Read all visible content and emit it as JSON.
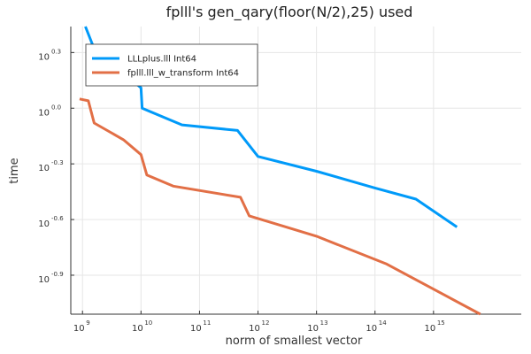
{
  "chart_data": {
    "type": "line",
    "title": "fplll's gen_qary(floor(N/2),25) used",
    "xlabel": "norm of smallest vector",
    "ylabel": "time",
    "x_scale": "log10",
    "y_scale": "log10",
    "xlim_exp": [
      8.8,
      16.5
    ],
    "ylim_exp": [
      -1.11,
      0.44
    ],
    "x_ticks": [
      {
        "base": "10",
        "exp": "9",
        "value_exp": 9
      },
      {
        "base": "10",
        "exp": "10",
        "value_exp": 10
      },
      {
        "base": "10",
        "exp": "11",
        "value_exp": 11
      },
      {
        "base": "10",
        "exp": "12",
        "value_exp": 12
      },
      {
        "base": "10",
        "exp": "13",
        "value_exp": 13
      },
      {
        "base": "10",
        "exp": "14",
        "value_exp": 14
      },
      {
        "base": "10",
        "exp": "15",
        "value_exp": 15
      }
    ],
    "y_ticks": [
      {
        "base": "10",
        "exp": "0.3",
        "value_exp": 0.3
      },
      {
        "base": "10",
        "exp": "0.0",
        "value_exp": 0.0
      },
      {
        "base": "10",
        "exp": "-0.3",
        "value_exp": -0.3
      },
      {
        "base": "10",
        "exp": "-0.6",
        "value_exp": -0.6
      },
      {
        "base": "10",
        "exp": "-0.9",
        "value_exp": -0.9
      }
    ],
    "grid": true,
    "legend_position": "top-left",
    "series": [
      {
        "name": "LLLplus.lll Int64",
        "color": "#009af9",
        "x_exp": [
          9.05,
          9.2,
          9.4,
          10.0,
          10.02,
          10.7,
          11.65,
          12.0,
          13.0,
          14.0,
          14.7,
          15.4
        ],
        "y_exp": [
          0.44,
          0.32,
          0.27,
          0.11,
          0.0,
          -0.09,
          -0.12,
          -0.26,
          -0.34,
          -0.43,
          -0.49,
          -0.64
        ]
      },
      {
        "name": "fplll.lll_w_transform Int64",
        "color": "#e26f46",
        "x_exp": [
          8.95,
          9.1,
          9.2,
          9.7,
          10.0,
          10.1,
          10.55,
          11.7,
          11.85,
          13.0,
          14.2,
          15.8
        ],
        "y_exp": [
          0.05,
          0.04,
          -0.08,
          -0.17,
          -0.25,
          -0.36,
          -0.42,
          -0.48,
          -0.58,
          -0.69,
          -0.84,
          -1.11
        ]
      }
    ]
  }
}
